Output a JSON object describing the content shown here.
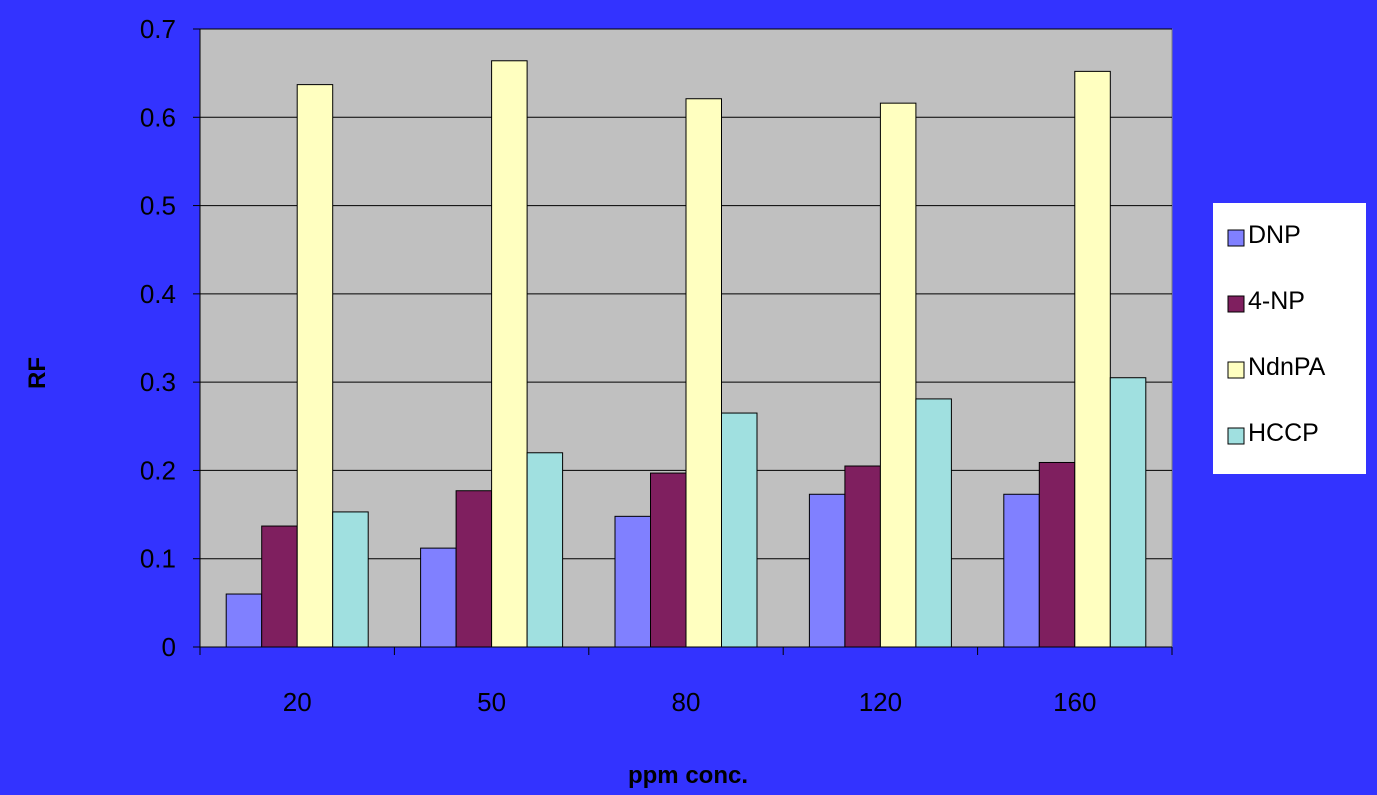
{
  "chart_data": {
    "type": "bar",
    "title": "",
    "xlabel": "ppm conc.",
    "ylabel": "RF",
    "categories": [
      "20",
      "50",
      "80",
      "120",
      "160"
    ],
    "ylim": [
      0,
      0.7
    ],
    "yticks": [
      "0",
      "0.1",
      "0.2",
      "0.3",
      "0.4",
      "0.5",
      "0.6",
      "0.7"
    ],
    "grid": true,
    "legend_position": "right",
    "series": [
      {
        "name": "DNP",
        "color": "#8080ff",
        "values": [
          0.06,
          0.112,
          0.148,
          0.173,
          0.173
        ]
      },
      {
        "name": "4-NP",
        "color": "#7f1f5f",
        "values": [
          0.137,
          0.177,
          0.197,
          0.205,
          0.209
        ]
      },
      {
        "name": "NdnPA",
        "color": "#ffffc0",
        "values": [
          0.637,
          0.664,
          0.621,
          0.616,
          0.652
        ]
      },
      {
        "name": "HCCP",
        "color": "#a0e0e0",
        "values": [
          0.153,
          0.22,
          0.265,
          0.281,
          0.305
        ]
      }
    ],
    "plot_background": "#c0c0c0",
    "page_background": "#3333ff"
  }
}
